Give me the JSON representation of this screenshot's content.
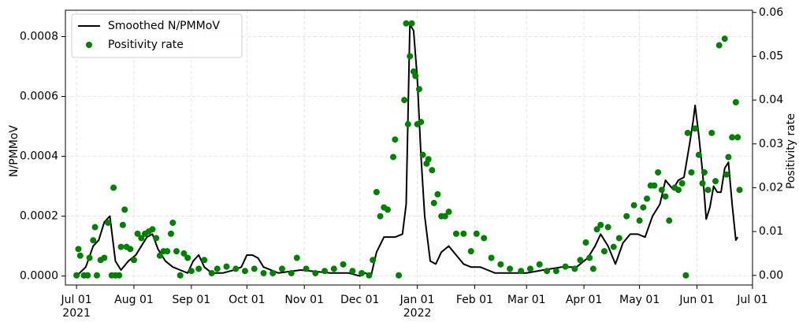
{
  "chart_data": {
    "type": "line",
    "ylabel": "N/PMMoV",
    "y2label": "Positivity rate",
    "xlim": [
      "2021-06-25",
      "2022-07-01"
    ],
    "xticks": [
      {
        "value": "2021-07-01",
        "label": "Jul 01\n2021"
      },
      {
        "value": "2021-08-01",
        "label": "Aug 01"
      },
      {
        "value": "2021-09-01",
        "label": "Sep 01"
      },
      {
        "value": "2021-10-01",
        "label": "Oct 01"
      },
      {
        "value": "2021-11-01",
        "label": "Nov 01"
      },
      {
        "value": "2021-12-01",
        "label": "Dec 01"
      },
      {
        "value": "2022-01-01",
        "label": "Jan 01\n2022"
      },
      {
        "value": "2022-02-01",
        "label": "Feb 01"
      },
      {
        "value": "2022-03-01",
        "label": "Mar 01"
      },
      {
        "value": "2022-04-01",
        "label": "Apr 01"
      },
      {
        "value": "2022-05-01",
        "label": "May 01"
      },
      {
        "value": "2022-06-01",
        "label": "Jun 01"
      },
      {
        "value": "2022-07-01",
        "label": "Jul 01"
      }
    ],
    "ylim": [
      -3e-05,
      0.000888
    ],
    "yticks": [
      {
        "value": 0,
        "label": "0.0000"
      },
      {
        "value": 0.0002,
        "label": "0.0002"
      },
      {
        "value": 0.0004,
        "label": "0.0004"
      },
      {
        "value": 0.0006,
        "label": "0.0006"
      },
      {
        "value": 0.0008,
        "label": "0.0008"
      }
    ],
    "y2lim": [
      -0.0022,
      0.0605
    ],
    "y2ticks": [
      {
        "value": 0,
        "label": "0.00"
      },
      {
        "value": 0.01,
        "label": "0.01"
      },
      {
        "value": 0.02,
        "label": "0.02"
      },
      {
        "value": 0.03,
        "label": "0.03"
      },
      {
        "value": 0.04,
        "label": "0.04"
      },
      {
        "value": 0.05,
        "label": "0.05"
      },
      {
        "value": 0.06,
        "label": "0.06"
      }
    ],
    "grid": true,
    "legend": "upper left",
    "series": [
      {
        "name": "Smoothed N/PMMoV",
        "type": "line",
        "color": "#000000",
        "x": [
          "2021-07-01",
          "2021-07-06",
          "2021-07-10",
          "2021-07-13",
          "2021-07-16",
          "2021-07-19",
          "2021-07-22",
          "2021-07-25",
          "2021-07-29",
          "2021-08-02",
          "2021-08-05",
          "2021-08-08",
          "2021-08-11",
          "2021-08-14",
          "2021-08-18",
          "2021-08-22",
          "2021-08-26",
          "2021-08-30",
          "2021-09-02",
          "2021-09-05",
          "2021-09-08",
          "2021-09-12",
          "2021-09-18",
          "2021-09-24",
          "2021-09-28",
          "2021-10-01",
          "2021-10-04",
          "2021-10-07",
          "2021-10-10",
          "2021-10-18",
          "2021-10-30",
          "2021-11-15",
          "2021-11-25",
          "2021-12-01",
          "2021-12-04",
          "2021-12-07",
          "2021-12-10",
          "2021-12-14",
          "2021-12-20",
          "2021-12-24",
          "2021-12-26",
          "2021-12-28",
          "2021-12-30",
          "2022-01-01",
          "2022-01-03",
          "2022-01-05",
          "2022-01-08",
          "2022-01-11",
          "2022-01-14",
          "2022-01-18",
          "2022-01-22",
          "2022-01-26",
          "2022-01-30",
          "2022-02-04",
          "2022-02-08",
          "2022-02-12",
          "2022-02-20",
          "2022-03-01",
          "2022-03-10",
          "2022-03-20",
          "2022-03-28",
          "2022-04-03",
          "2022-04-07",
          "2022-04-10",
          "2022-04-14",
          "2022-04-18",
          "2022-04-22",
          "2022-04-26",
          "2022-04-30",
          "2022-05-04",
          "2022-05-08",
          "2022-05-12",
          "2022-05-15",
          "2022-05-19",
          "2022-05-22",
          "2022-05-25",
          "2022-05-28",
          "2022-05-30",
          "2022-05-31",
          "2022-06-02",
          "2022-06-04",
          "2022-06-06",
          "2022-06-08",
          "2022-06-10",
          "2022-06-12",
          "2022-06-14",
          "2022-06-16",
          "2022-06-18",
          "2022-06-20",
          "2022-06-22",
          "2022-06-23"
        ],
        "values": [
          0.0,
          3e-05,
          0.0001,
          0.00012,
          0.00018,
          0.0002,
          5e-05,
          2e-05,
          5e-05,
          7e-05,
          0.0001,
          0.00013,
          0.00014,
          9e-05,
          5e-05,
          3e-05,
          2e-05,
          1e-05,
          5e-05,
          7e-05,
          3e-05,
          1e-05,
          1e-05,
          2e-05,
          3e-05,
          7e-05,
          7e-05,
          6e-05,
          3e-05,
          1e-05,
          2e-05,
          1e-05,
          1e-05,
          0.0,
          1e-05,
          0.0,
          8e-05,
          0.00013,
          0.00013,
          0.00014,
          0.00024,
          0.00084,
          0.00082,
          0.00066,
          0.0004,
          0.0002,
          5e-05,
          4e-05,
          8e-05,
          0.0001,
          7e-05,
          4e-05,
          3e-05,
          3e-05,
          2e-05,
          1e-05,
          1e-05,
          1e-05,
          2e-05,
          3e-05,
          3e-05,
          6e-05,
          0.0001,
          0.00014,
          0.0001,
          4e-05,
          0.00011,
          0.00014,
          0.00014,
          0.00013,
          0.0002,
          0.00024,
          0.00032,
          0.00029,
          0.00032,
          0.00033,
          0.00044,
          0.00052,
          0.00057,
          0.00047,
          0.00035,
          0.00019,
          0.00023,
          0.0003,
          0.00028,
          0.00028,
          0.00036,
          0.00038,
          0.00024,
          0.00012,
          0.00013
        ]
      },
      {
        "name": "Positivity rate",
        "type": "scatter",
        "color": "#008000",
        "axis": "y2",
        "x": [
          "2021-07-01",
          "2021-07-02",
          "2021-07-03",
          "2021-07-05",
          "2021-07-07",
          "2021-07-08",
          "2021-07-10",
          "2021-07-11",
          "2021-07-12",
          "2021-07-14",
          "2021-07-16",
          "2021-07-18",
          "2021-07-20",
          "2021-07-21",
          "2021-07-22",
          "2021-07-24",
          "2021-07-25",
          "2021-07-26",
          "2021-07-27",
          "2021-07-28",
          "2021-07-30",
          "2021-08-01",
          "2021-08-03",
          "2021-08-05",
          "2021-08-07",
          "2021-08-09",
          "2021-08-11",
          "2021-08-13",
          "2021-08-15",
          "2021-08-17",
          "2021-08-19",
          "2021-08-21",
          "2021-08-22",
          "2021-08-24",
          "2021-08-26",
          "2021-08-28",
          "2021-08-30",
          "2021-09-01",
          "2021-09-05",
          "2021-09-08",
          "2021-09-12",
          "2021-09-15",
          "2021-09-20",
          "2021-09-25",
          "2021-09-30",
          "2021-10-05",
          "2021-10-10",
          "2021-10-15",
          "2021-10-20",
          "2021-10-25",
          "2021-10-28",
          "2021-11-02",
          "2021-11-07",
          "2021-11-12",
          "2021-11-17",
          "2021-11-22",
          "2021-11-27",
          "2021-12-02",
          "2021-12-06",
          "2021-12-08",
          "2021-12-10",
          "2021-12-12",
          "2021-12-14",
          "2021-12-16",
          "2021-12-19",
          "2021-12-20",
          "2021-12-22",
          "2021-12-25",
          "2021-12-26",
          "2021-12-27",
          "2021-12-28",
          "2021-12-29",
          "2021-12-30",
          "2021-12-31",
          "2022-01-01",
          "2022-01-02",
          "2022-01-03",
          "2022-01-04",
          "2022-01-06",
          "2022-01-07",
          "2022-01-09",
          "2022-01-10",
          "2022-01-12",
          "2022-01-14",
          "2022-01-16",
          "2022-01-18",
          "2022-01-22",
          "2022-01-26",
          "2022-01-30",
          "2022-02-02",
          "2022-02-06",
          "2022-02-10",
          "2022-02-15",
          "2022-02-20",
          "2022-02-26",
          "2022-03-03",
          "2022-03-08",
          "2022-03-12",
          "2022-03-17",
          "2022-03-22",
          "2022-03-27",
          "2022-03-30",
          "2022-04-02",
          "2022-04-04",
          "2022-04-06",
          "2022-04-08",
          "2022-04-10",
          "2022-04-12",
          "2022-04-14",
          "2022-04-17",
          "2022-04-20",
          "2022-04-24",
          "2022-04-28",
          "2022-05-01",
          "2022-05-03",
          "2022-05-05",
          "2022-05-07",
          "2022-05-09",
          "2022-05-11",
          "2022-05-13",
          "2022-05-15",
          "2022-05-17",
          "2022-05-20",
          "2022-05-22",
          "2022-05-24",
          "2022-05-26",
          "2022-05-27",
          "2022-05-29",
          "2022-05-31",
          "2022-06-02",
          "2022-06-04",
          "2022-06-05",
          "2022-06-07",
          "2022-06-09",
          "2022-06-11",
          "2022-06-13",
          "2022-06-16",
          "2022-06-17",
          "2022-06-18",
          "2022-06-20",
          "2022-06-22",
          "2022-06-23",
          "2022-06-24"
        ],
        "values": [
          0.0,
          0.006,
          0.0045,
          0.0,
          0.0,
          0.004,
          0.008,
          0.011,
          0.0,
          0.0035,
          0.004,
          0.012,
          0.0,
          0.02,
          0.0,
          0.0,
          0.0065,
          0.0115,
          0.015,
          0.0065,
          0.006,
          0.0035,
          0.0095,
          0.0085,
          0.0095,
          0.01,
          0.0105,
          0.0085,
          0.0045,
          0.0055,
          0.0055,
          0.0095,
          0.012,
          0.0055,
          0.0,
          0.005,
          0.004,
          0.001,
          0.0015,
          0.0035,
          0.0005,
          0.0015,
          0.002,
          0.0015,
          0.001,
          0.0015,
          0.0005,
          0.0005,
          0.0015,
          0.0005,
          0.004,
          0.0015,
          0.0005,
          0.001,
          0.0015,
          0.0025,
          0.001,
          0.0005,
          0.0,
          0.0035,
          0.019,
          0.0135,
          0.0155,
          0.015,
          0.027,
          0.031,
          0.0,
          0.04,
          0.0575,
          0.0345,
          0.05,
          0.0575,
          0.0465,
          0.0455,
          0.0345,
          0.0425,
          0.035,
          0.0275,
          0.0255,
          0.0265,
          0.024,
          0.0165,
          0.0185,
          0.0135,
          0.0135,
          0.0145,
          0.0095,
          0.0095,
          0.0055,
          0.0095,
          0.0085,
          0.004,
          0.0025,
          0.0015,
          0.001,
          0.0015,
          0.0025,
          0.001,
          0.001,
          0.002,
          0.0015,
          0.0035,
          0.0075,
          0.004,
          0.0015,
          0.0105,
          0.0115,
          0.0055,
          0.011,
          0.0065,
          0.0085,
          0.0135,
          0.016,
          0.0125,
          0.0155,
          0.0175,
          0.0205,
          0.0205,
          0.0235,
          0.0195,
          0.018,
          0.0125,
          0.02,
          0.0195,
          0.021,
          0.0,
          0.0325,
          0.0235,
          0.0335,
          0.0275,
          0.021,
          0.0235,
          0.0195,
          0.0325,
          0.0215,
          0.0525,
          0.054,
          0.023,
          0.027,
          0.0315,
          0.0395,
          0.0315,
          0.0195
        ]
      }
    ]
  }
}
